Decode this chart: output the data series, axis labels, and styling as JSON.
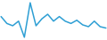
{
  "y": [
    60,
    45,
    40,
    50,
    15,
    90,
    40,
    55,
    65,
    50,
    60,
    50,
    45,
    52,
    42,
    38,
    50,
    38,
    35
  ],
  "line_color": "#2e9fd4",
  "background_color": "#ffffff",
  "linewidth": 1.1
}
